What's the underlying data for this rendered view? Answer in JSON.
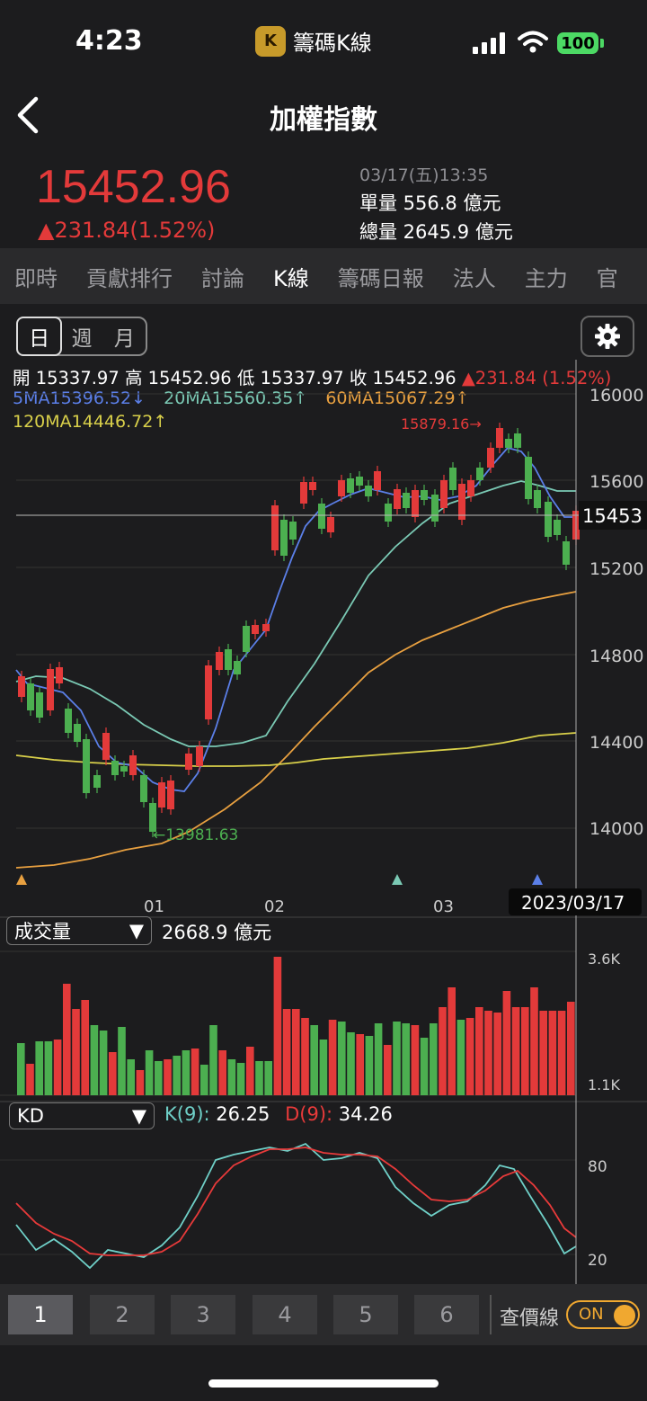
{
  "status": {
    "time": "4:23",
    "app_name": "籌碼K線",
    "logo_char": "K",
    "battery": "100"
  },
  "header": {
    "title": "加權指數"
  },
  "quote": {
    "price": "15452.96",
    "change": "▲231.84(1.52%)",
    "datetime": "03/17(五)13:35",
    "single_volume": "單量 556.8 億元",
    "total_volume": "總量 2645.9 億元"
  },
  "tabs": [
    {
      "label": "即時"
    },
    {
      "label": "貢獻排行"
    },
    {
      "label": "討論"
    },
    {
      "label": "K線"
    },
    {
      "label": "籌碼日報"
    },
    {
      "label": "法人"
    },
    {
      "label": "主力"
    },
    {
      "label": "官"
    }
  ],
  "active_tab": 3,
  "periods": [
    {
      "label": "日"
    },
    {
      "label": "週"
    },
    {
      "label": "月"
    }
  ],
  "ohlc": {
    "open": "開 15337.97",
    "high": "高 15452.96",
    "low": "低 15337.97",
    "close": "收 15452.96",
    "change": "▲231.84 (1.52%)"
  },
  "ma": {
    "ma5": "5MA15396.52↓",
    "ma20": "20MA15560.35↑",
    "ma60": "60MA15067.29↑",
    "ma120": "120MA14446.72↑"
  },
  "colors": {
    "up": "#e33a3a",
    "down": "#4caf50",
    "ma5": "#5b7fe8",
    "ma20": "#7ac9b4",
    "ma60": "#e8a040",
    "ma120": "#d9d04a",
    "k_line": "#6fd0c8",
    "d_line": "#e83a3a"
  },
  "price_axis": {
    "labels": [
      "16000",
      "15600",
      "15200",
      "14800",
      "14400",
      "14000"
    ]
  },
  "date_axis": {
    "labels": [
      "01",
      "02",
      "03"
    ]
  },
  "high_marker": "15879.16→",
  "low_marker": "←13981.63",
  "current_price_label": "15453",
  "crosshair_date": "2023/03/17",
  "volume": {
    "selector": "成交量",
    "value": "2668.9 億元",
    "axis_labels": [
      "3.6K",
      "1.1K"
    ]
  },
  "kd": {
    "selector": "KD",
    "k_label": "K(9):",
    "k_value": "26.25",
    "d_label": "D(9):",
    "d_value": "34.26",
    "axis_labels": [
      "80",
      "20"
    ]
  },
  "bottom": {
    "buttons": [
      {
        "label": "1"
      },
      {
        "label": "2"
      },
      {
        "label": "3"
      },
      {
        "label": "4"
      },
      {
        "label": "5"
      },
      {
        "label": "6"
      }
    ],
    "price_line_label": "查價線",
    "toggle_label": "ON"
  }
}
